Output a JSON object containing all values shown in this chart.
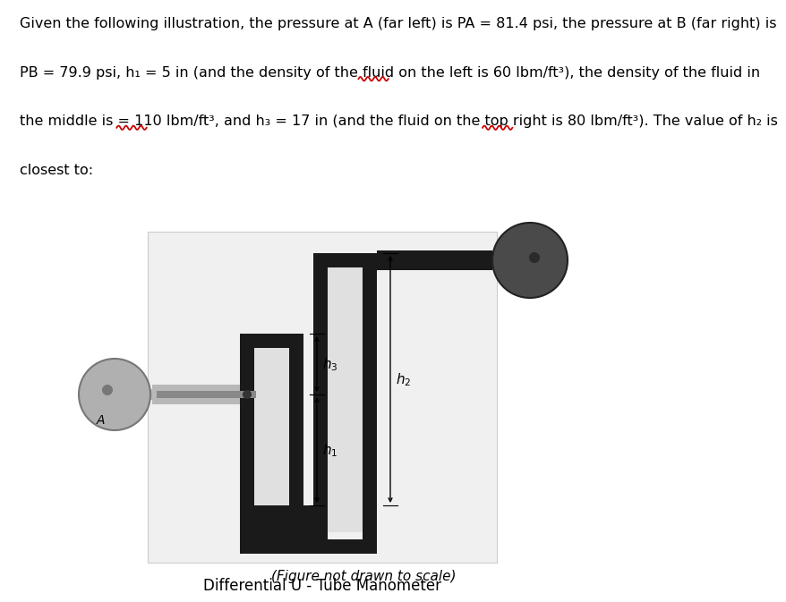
{
  "line1": "Given the following illustration, the pressure at A (far left) is PA = 81.4 psi, the pressure at B (far right) is",
  "line2": "PB = 79.9 psi, h₁ = 5 in (and the density of the fluid on the left is 60 lbm/ft³), the density of the fluid in",
  "line3": "the middle is = 110 lbm/ft³, and h₃ = 17 in (and the fluid on the top right is 80 lbm/ft³). The value of h₂ is",
  "line4": "closest to:",
  "diagram_title": "Differential U - Tube Manometer",
  "figure_note": "(Figure not drawn to scale)",
  "bg_color": "#ffffff",
  "diag_bg": "#f0f0f0",
  "tube_color": "#1a1a1a",
  "left_pipe_color": "#b8b8b8",
  "gauge_left_color": "#b0b0b0",
  "gauge_right_color": "#4a4a4a",
  "text_color": "#000000",
  "wavy_color": "#cc0000",
  "fontsize_text": 11.5,
  "fontsize_label": 11,
  "fontsize_title": 12
}
